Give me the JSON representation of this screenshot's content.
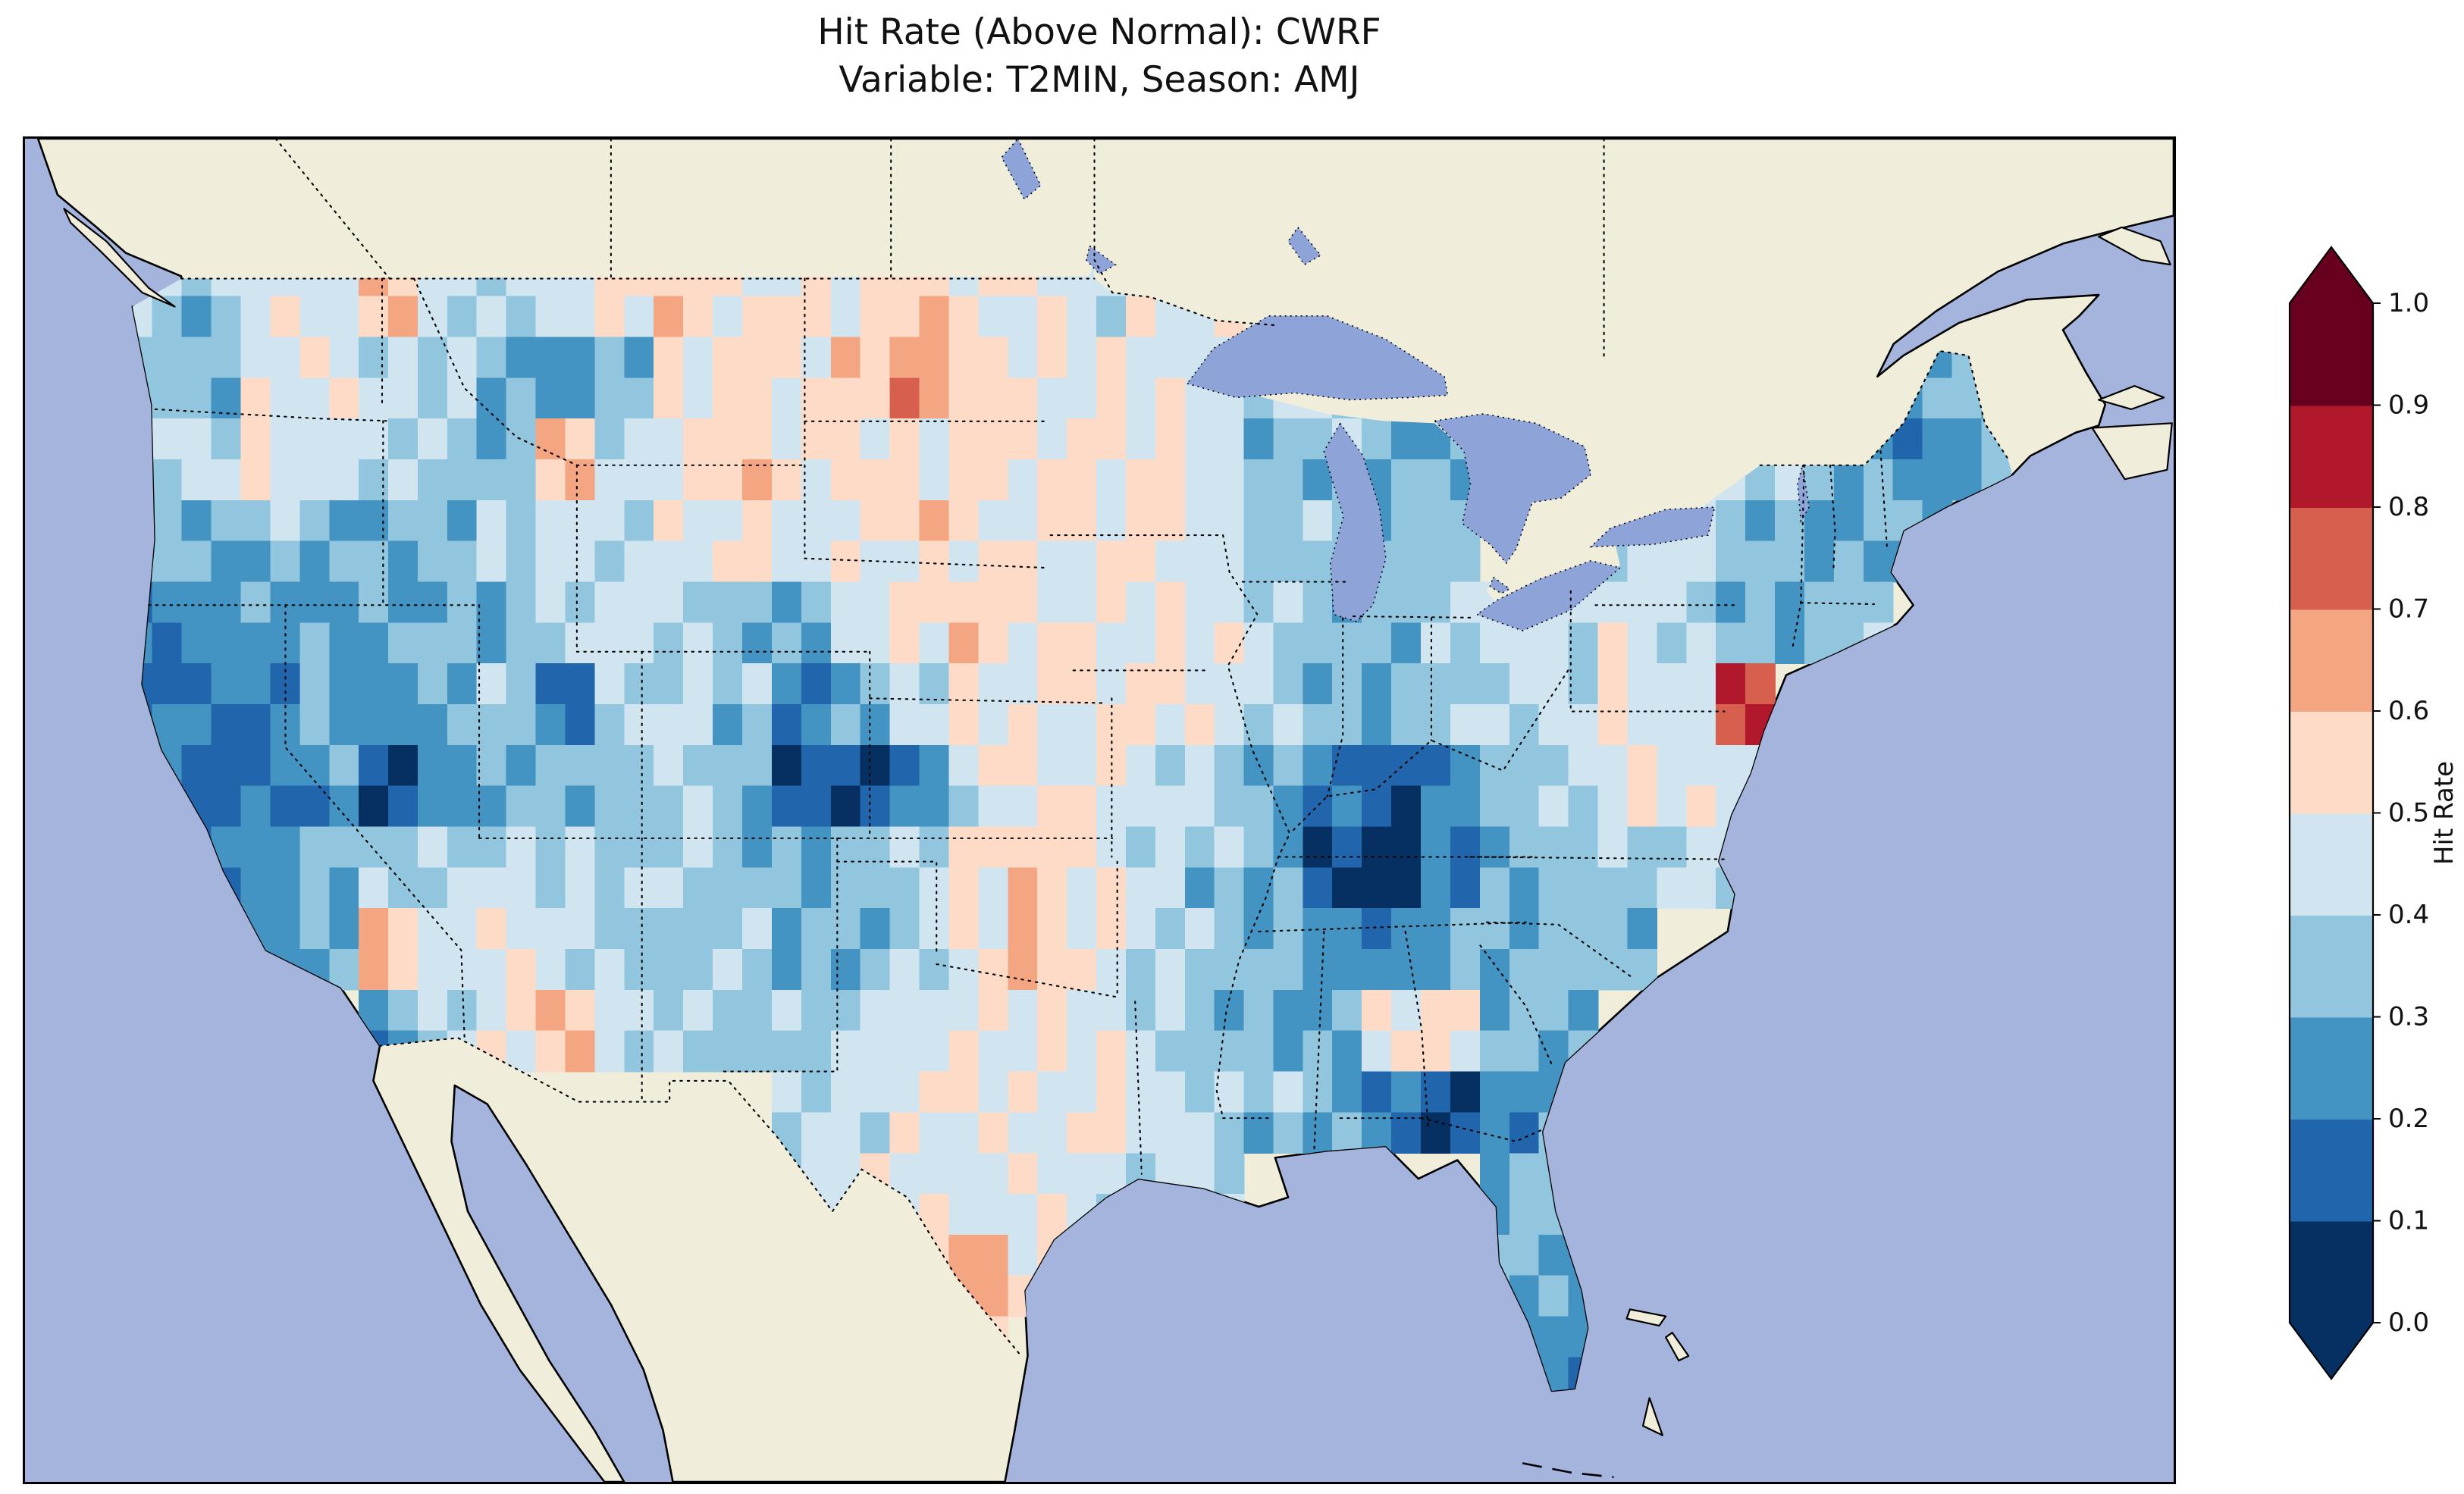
{
  "figure": {
    "title_line1": "Hit Rate (Above Normal): CWRF",
    "title_line2": "Variable: T2MIN, Season: AMJ"
  },
  "colorbar": {
    "label": "Hit Rate",
    "ticks": [
      "0.0",
      "0.1",
      "0.2",
      "0.3",
      "0.4",
      "0.5",
      "0.6",
      "0.7",
      "0.8",
      "0.9",
      "1.0"
    ],
    "bin_colors": [
      "#053061",
      "#2166ac",
      "#4393c3",
      "#92c5de",
      "#d1e5f0",
      "#fddbc7",
      "#f4a582",
      "#d6604d",
      "#b2182b",
      "#67001f"
    ],
    "under_color": "#053061",
    "over_color": "#67001f"
  },
  "map_colors": {
    "ocean": "#a5b4dd",
    "land": "#f0eedb",
    "lake": "#8ea4d9",
    "coast": "#000000"
  },
  "chart_data": {
    "type": "heatmap",
    "title": "Hit Rate (Above Normal): CWRF",
    "subtitle": "Variable: T2MIN, Season: AMJ",
    "model": "CWRF",
    "variable": "T2MIN",
    "season": "AMJ",
    "colorbar_label": "Hit Rate",
    "value_range": [
      0.0,
      1.0
    ],
    "colorbar_extend": "both",
    "region": "Contiguous United States",
    "grid": {
      "lon_start": -125,
      "lon_step": 1.8125,
      "lat_start": 49.5,
      "lat_step": -1.75,
      "cols": 32,
      "rows": 14,
      "values": [
        [
          0.4,
          0.35,
          0.45,
          0.45,
          0.6,
          0.45,
          0.4,
          0.45,
          0.5,
          0.55,
          0.5,
          0.55,
          0.5,
          0.55,
          0.5,
          0.5,
          0.45,
          0.5,
          0.5,
          null,
          null,
          null,
          null,
          null,
          null,
          null,
          null,
          null,
          null,
          null,
          null,
          null
        ],
        [
          0.35,
          0.3,
          0.45,
          0.5,
          0.45,
          0.4,
          0.3,
          0.25,
          0.35,
          0.5,
          0.55,
          0.5,
          0.55,
          0.65,
          0.55,
          0.5,
          0.5,
          0.45,
          0.45,
          0.4,
          0.4,
          0.35,
          null,
          null,
          null,
          null,
          null,
          null,
          null,
          null,
          0.3,
          0.35
        ],
        [
          0.4,
          0.45,
          0.5,
          0.45,
          0.4,
          0.35,
          0.3,
          0.6,
          0.45,
          0.5,
          0.55,
          0.5,
          0.55,
          0.5,
          0.55,
          0.5,
          0.5,
          0.5,
          0.45,
          0.35,
          0.35,
          0.3,
          0.3,
          null,
          null,
          null,
          0.45,
          0.4,
          0.35,
          0.3,
          0.25,
          0.3
        ],
        [
          0.35,
          0.3,
          0.35,
          0.3,
          0.3,
          0.35,
          0.4,
          0.45,
          0.4,
          0.45,
          0.5,
          0.45,
          0.5,
          0.55,
          0.5,
          0.5,
          0.5,
          0.55,
          0.45,
          0.35,
          0.35,
          0.3,
          0.35,
          null,
          0.45,
          0.4,
          0.45,
          0.35,
          0.3,
          0.3,
          0.3,
          null
        ],
        [
          0.2,
          0.25,
          0.25,
          0.25,
          0.3,
          0.35,
          0.3,
          0.4,
          0.45,
          0.4,
          0.35,
          0.3,
          0.45,
          0.5,
          0.55,
          0.5,
          0.5,
          0.5,
          0.45,
          0.4,
          0.35,
          0.35,
          0.4,
          0.45,
          0.4,
          0.45,
          0.4,
          0.35,
          0.3,
          0.35,
          null,
          null
        ],
        [
          0.15,
          0.2,
          0.2,
          0.3,
          0.25,
          0.3,
          0.35,
          0.15,
          0.4,
          0.45,
          0.35,
          0.2,
          0.3,
          0.45,
          0.5,
          0.5,
          0.5,
          0.5,
          0.45,
          0.4,
          0.35,
          0.3,
          0.35,
          0.4,
          0.45,
          0.5,
          0.45,
          0.8,
          null,
          null,
          null,
          null
        ],
        [
          0.2,
          0.15,
          0.2,
          0.25,
          0.1,
          0.25,
          0.3,
          0.35,
          0.35,
          0.4,
          0.3,
          0.1,
          0.1,
          0.25,
          0.45,
          0.5,
          0.5,
          0.45,
          0.4,
          0.3,
          0.2,
          0.1,
          0.2,
          0.35,
          0.4,
          0.5,
          0.45,
          0.45,
          null,
          null,
          null,
          null
        ],
        [
          0.25,
          0.2,
          0.25,
          0.3,
          0.35,
          0.4,
          0.45,
          0.4,
          0.35,
          0.4,
          0.35,
          0.3,
          0.35,
          0.4,
          0.5,
          0.55,
          0.5,
          0.45,
          0.35,
          0.3,
          0.1,
          0.05,
          0.2,
          0.3,
          0.35,
          0.35,
          0.4,
          0.4,
          null,
          null,
          null,
          null
        ],
        [
          null,
          0.2,
          0.25,
          0.3,
          0.6,
          0.45,
          0.5,
          0.4,
          0.35,
          0.35,
          0.4,
          0.3,
          0.3,
          0.4,
          0.5,
          0.6,
          0.5,
          0.4,
          0.35,
          0.3,
          0.25,
          0.25,
          0.3,
          0.3,
          0.35,
          0.35,
          null,
          null,
          null,
          null,
          null,
          null
        ],
        [
          null,
          null,
          null,
          null,
          0.25,
          0.4,
          0.5,
          0.6,
          0.45,
          0.4,
          0.35,
          0.35,
          0.4,
          0.45,
          0.5,
          0.5,
          0.45,
          0.4,
          0.35,
          0.3,
          0.3,
          0.5,
          0.5,
          0.3,
          0.3,
          null,
          null,
          null,
          null,
          null,
          null,
          null
        ],
        [
          null,
          null,
          null,
          null,
          null,
          null,
          null,
          null,
          null,
          null,
          null,
          0.4,
          0.45,
          0.5,
          0.5,
          0.45,
          0.5,
          0.45,
          0.4,
          0.35,
          0.3,
          0.2,
          0.1,
          0.25,
          0.3,
          null,
          null,
          null,
          null,
          null,
          null,
          null
        ],
        [
          null,
          null,
          null,
          null,
          null,
          null,
          null,
          null,
          null,
          null,
          null,
          0.45,
          0.5,
          0.45,
          0.45,
          0.5,
          0.45,
          0.4,
          0.4,
          null,
          null,
          null,
          null,
          0.3,
          0.35,
          null,
          null,
          null,
          null,
          null,
          null,
          null
        ],
        [
          null,
          null,
          null,
          null,
          null,
          null,
          null,
          null,
          null,
          null,
          null,
          null,
          null,
          0.5,
          0.65,
          0.5,
          null,
          null,
          null,
          null,
          null,
          null,
          null,
          0.3,
          0.25,
          null,
          null,
          null,
          null,
          null,
          null,
          null
        ],
        [
          null,
          null,
          null,
          null,
          null,
          null,
          null,
          null,
          null,
          null,
          null,
          null,
          null,
          0.5,
          0.55,
          null,
          null,
          null,
          null,
          null,
          null,
          null,
          null,
          0.3,
          0.25,
          null,
          null,
          null,
          null,
          null,
          null,
          null
        ]
      ]
    }
  }
}
